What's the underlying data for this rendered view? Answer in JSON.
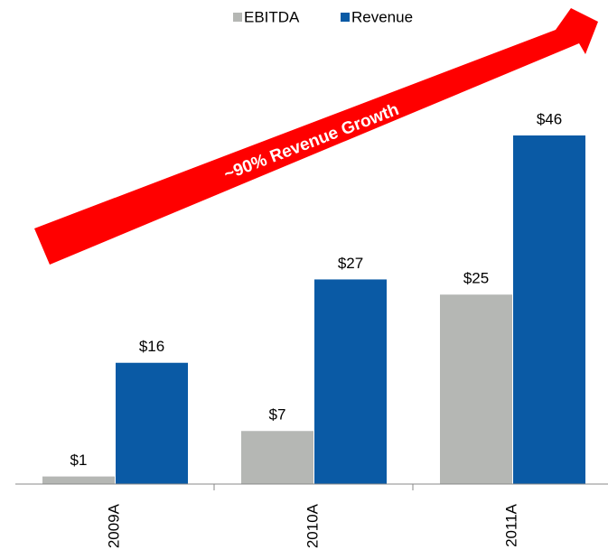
{
  "chart_data": {
    "type": "bar",
    "categories": [
      "2009A",
      "2010A",
      "2011A"
    ],
    "series": [
      {
        "name": "EBITDA",
        "color": "#b5b7b4",
        "values": [
          1,
          7,
          25
        ],
        "value_labels": [
          "$1",
          "$7",
          "$25"
        ]
      },
      {
        "name": "Revenue",
        "color": "#0a5aa5",
        "values": [
          16,
          27,
          46
        ],
        "value_labels": [
          "$16",
          "$27",
          "$46"
        ]
      }
    ],
    "annotation": "~90% Revenue Growth",
    "annotation_color": "#ff0000"
  }
}
